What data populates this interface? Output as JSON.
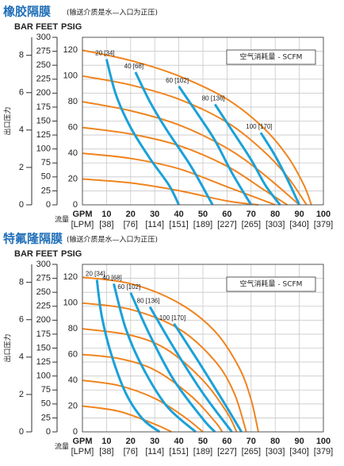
{
  "chart_data": [
    {
      "type": "line",
      "title": "橡胶隔膜",
      "subtitle": "(输送介质是水—入口为正压)",
      "bar_label": "BAR",
      "feet_label": "FEET",
      "psig_label": "PSIG",
      "xlabel": "GPM",
      "x2label": "[LPM]",
      "flow_label": "流量",
      "ylabel": "出口压力",
      "legend_title": "空气消耗量 - SCFM",
      "xlim": [
        0,
        100
      ],
      "xticks": [
        10,
        20,
        30,
        40,
        50,
        60,
        70,
        80,
        90,
        100
      ],
      "x2ticks": [
        {
          "value": 10,
          "label": "[38]"
        },
        {
          "value": 20,
          "label": "[76]"
        },
        {
          "value": 30,
          "label": "[114]"
        },
        {
          "value": 40,
          "label": "[151]"
        },
        {
          "value": 50,
          "label": "[189]"
        },
        {
          "value": 60,
          "label": "[227]"
        },
        {
          "value": 70,
          "label": "[265]"
        },
        {
          "value": 80,
          "label": "[303]"
        },
        {
          "value": 90,
          "label": "[340]"
        },
        {
          "value": 100,
          "label": "[379]"
        }
      ],
      "ylim": [
        0,
        130
      ],
      "yticks": [
        0,
        20,
        40,
        60,
        80,
        100,
        120
      ],
      "ylim_feet": [
        0,
        300
      ],
      "yticks_feet": [
        0,
        25,
        50,
        75,
        100,
        125,
        150,
        175,
        200,
        225,
        250,
        275,
        300
      ],
      "ylim_bar": [
        0,
        8.96
      ],
      "yticks_bar": [
        0,
        2,
        4,
        6,
        8
      ],
      "grid": true,
      "series": [
        {
          "color": "#f0841f",
          "x": [
            0,
            20,
            40,
            60,
            75,
            85,
            92,
            95
          ],
          "values": [
            120,
            112,
            100,
            82,
            60,
            38,
            15,
            0
          ]
        },
        {
          "color": "#f0841f",
          "x": [
            0,
            20,
            40,
            60,
            75,
            85,
            93
          ],
          "values": [
            100,
            93,
            82,
            64,
            42,
            22,
            0
          ]
        },
        {
          "color": "#f0841f",
          "x": [
            0,
            20,
            40,
            60,
            75,
            90
          ],
          "values": [
            80,
            73,
            62,
            44,
            24,
            0
          ]
        },
        {
          "color": "#f0841f",
          "x": [
            0,
            20,
            40,
            60,
            75,
            85
          ],
          "values": [
            60,
            55,
            46,
            30,
            12,
            0
          ]
        },
        {
          "color": "#f0841f",
          "x": [
            0,
            20,
            40,
            60,
            80
          ],
          "values": [
            40,
            36,
            28,
            14,
            0
          ]
        },
        {
          "color": "#f0841f",
          "x": [
            0,
            20,
            40,
            60,
            73
          ],
          "values": [
            20,
            17,
            11,
            3,
            0
          ]
        },
        {
          "name": "20 [34]",
          "color": "#1ba1d8",
          "x": [
            10,
            14,
            20,
            28,
            36,
            40
          ],
          "values": [
            113,
            85,
            60,
            36,
            15,
            0
          ]
        },
        {
          "name": "40 [68]",
          "color": "#1ba1d8",
          "x": [
            22,
            28,
            35,
            45,
            54
          ],
          "values": [
            103,
            80,
            58,
            30,
            0
          ]
        },
        {
          "name": "60 [102]",
          "color": "#1ba1d8",
          "x": [
            40,
            48,
            55,
            62,
            70
          ],
          "values": [
            92,
            70,
            50,
            25,
            0
          ]
        },
        {
          "name": "80 [136]",
          "color": "#1ba1d8",
          "x": [
            55,
            62,
            70,
            76,
            82
          ],
          "values": [
            78,
            58,
            35,
            15,
            0
          ]
        },
        {
          "name": "100 [170]",
          "color": "#1ba1d8",
          "x": [
            74,
            80,
            85,
            90
          ],
          "values": [
            56,
            38,
            20,
            0
          ]
        }
      ]
    },
    {
      "type": "line",
      "title": "特氟隆隔膜",
      "subtitle": "(输送介质是水—入口为正压)",
      "bar_label": "BAR",
      "feet_label": "FEET",
      "psig_label": "PSIG",
      "xlabel": "GPM",
      "x2label": "[LPM]",
      "flow_label": "流量",
      "ylabel": "出口压力",
      "legend_title": "空气消耗量 - SCFM",
      "xlim": [
        0,
        100
      ],
      "xticks": [
        10,
        20,
        30,
        40,
        50,
        60,
        70,
        80,
        90,
        100
      ],
      "x2ticks": [
        {
          "value": 10,
          "label": "[38]"
        },
        {
          "value": 20,
          "label": "[76]"
        },
        {
          "value": 30,
          "label": "[114]"
        },
        {
          "value": 40,
          "label": "[151]"
        },
        {
          "value": 50,
          "label": "[189]"
        },
        {
          "value": 60,
          "label": "[227]"
        },
        {
          "value": 70,
          "label": "[265]"
        },
        {
          "value": 80,
          "label": "[303]"
        },
        {
          "value": 90,
          "label": "[340]"
        },
        {
          "value": 100,
          "label": "[379]"
        }
      ],
      "ylim": [
        0,
        130
      ],
      "yticks": [
        0,
        20,
        40,
        60,
        80,
        100,
        120
      ],
      "ylim_feet": [
        0,
        300
      ],
      "yticks_feet": [
        0,
        25,
        50,
        75,
        100,
        125,
        150,
        175,
        200,
        225,
        250,
        275,
        300
      ],
      "ylim_bar": [
        0,
        8.96
      ],
      "yticks_bar": [
        0,
        2,
        4,
        6,
        8
      ],
      "grid": true,
      "series": [
        {
          "color": "#f0841f",
          "x": [
            0,
            20,
            40,
            55,
            65,
            70,
            73
          ],
          "values": [
            120,
            115,
            100,
            78,
            50,
            25,
            0
          ]
        },
        {
          "color": "#f0841f",
          "x": [
            0,
            20,
            40,
            55,
            63,
            68
          ],
          "values": [
            100,
            95,
            80,
            55,
            30,
            0
          ]
        },
        {
          "color": "#f0841f",
          "x": [
            0,
            20,
            35,
            50,
            60,
            64
          ],
          "values": [
            80,
            75,
            64,
            40,
            15,
            0
          ]
        },
        {
          "color": "#f0841f",
          "x": [
            0,
            15,
            30,
            45,
            55,
            58
          ],
          "values": [
            60,
            57,
            48,
            28,
            8,
            0
          ]
        },
        {
          "color": "#f0841f",
          "x": [
            0,
            15,
            30,
            42,
            50
          ],
          "values": [
            40,
            36,
            26,
            12,
            0
          ]
        },
        {
          "color": "#f0841f",
          "x": [
            0,
            15,
            30,
            37
          ],
          "values": [
            20,
            16,
            6,
            0
          ]
        },
        {
          "name": "20 [34]",
          "color": "#1ba1d8",
          "x": [
            6,
            8,
            12,
            18,
            25,
            32
          ],
          "values": [
            118,
            90,
            60,
            30,
            10,
            0
          ]
        },
        {
          "name": "40 [68]",
          "color": "#1ba1d8",
          "x": [
            13,
            18,
            25,
            35,
            47
          ],
          "values": [
            115,
            80,
            50,
            20,
            0
          ]
        },
        {
          "name": "60 [102]",
          "color": "#1ba1d8",
          "x": [
            20,
            28,
            38,
            50,
            55
          ],
          "values": [
            108,
            75,
            40,
            10,
            0
          ]
        },
        {
          "name": "80 [136]",
          "color": "#1ba1d8",
          "x": [
            28,
            38,
            50,
            62
          ],
          "values": [
            97,
            65,
            30,
            0
          ]
        },
        {
          "name": "100 [170]",
          "color": "#1ba1d8",
          "x": [
            38,
            48,
            58,
            66
          ],
          "values": [
            84,
            55,
            25,
            0
          ]
        }
      ]
    }
  ]
}
